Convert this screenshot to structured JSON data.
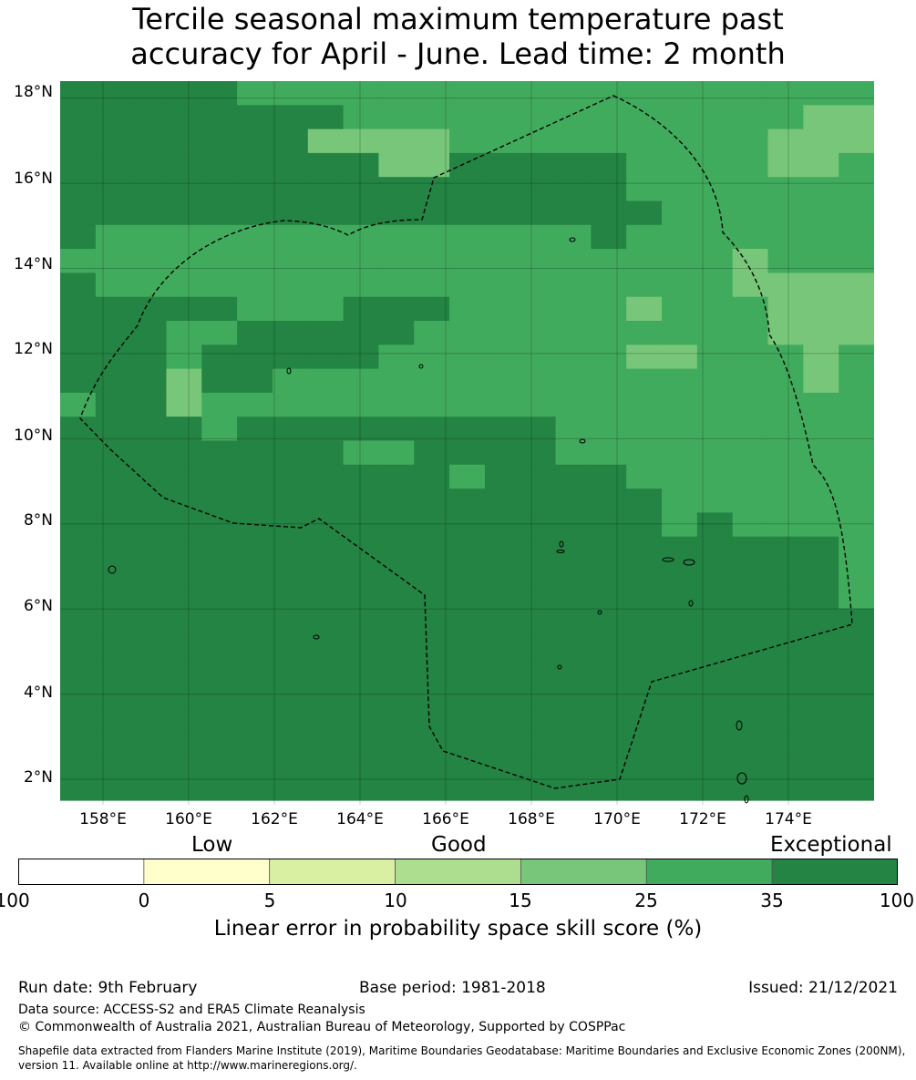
{
  "title": {
    "line1": "Tercile seasonal maximum temperature past",
    "line2": "accuracy for April - June. Lead time: 2 month"
  },
  "map": {
    "lat_ticks": [
      "18°N",
      "16°N",
      "14°N",
      "12°N",
      "10°N",
      "8°N",
      "6°N",
      "4°N",
      "2°N"
    ],
    "lon_ticks": [
      "158°E",
      "160°E",
      "162°E",
      "164°E",
      "166°E",
      "168°E",
      "170°E",
      "172°E",
      "174°E"
    ],
    "lat_range": [
      1.4,
      18.4
    ],
    "lon_range": [
      157.0,
      176.0
    ],
    "boundary_style": "dashed",
    "grid_columns": [
      "A",
      "B",
      "C",
      "D",
      "E",
      "F",
      "G",
      "H",
      "I",
      "J",
      "K",
      "L",
      "M",
      "N",
      "O",
      "P",
      "Q",
      "R",
      "S",
      "T",
      "U",
      "V",
      "W"
    ],
    "grid_rows": [
      "66666555555555555555555",
      "66666666555555555555544",
      "66666664444555555555444",
      "66666666644666665555445",
      "66666666666666665555555",
      "66666666666666666555555",
      "65555555555555565555555",
      "55555555555555555554555",
      "65555555555555555554444",
      "66666555666555554555444",
      "66655666665555555555444",
      "66656666655555554455545",
      "66646655555555555555545",
      "56645555555555555555555",
      "66665666666666555555555",
      "66666666556666555555555",
      "66666666666566665555555",
      "66666666666666666555555",
      "66666666666666666565555",
      "66666666666666666666665",
      "66666666666666666666665",
      "66666666666666666666665",
      "66666666666666666666666",
      "66666666666666666666666",
      "66666666666666666666666",
      "66666666666666666666666",
      "66666666666666666666666",
      "66666666666666666666666",
      "66666666666666666666666",
      "66666666666666666666666"
    ]
  },
  "colorbar": {
    "categories": [
      "Low",
      "Good",
      "Exceptional"
    ],
    "ticks": [
      "-100",
      "0",
      "5",
      "10",
      "15",
      "25",
      "35",
      "100"
    ],
    "colors": [
      "#ffffff",
      "#ffffcc",
      "#d9f0a3",
      "#addd8e",
      "#78c679",
      "#41ab5d",
      "#238443"
    ],
    "label": "Linear error in probability space skill score (%)"
  },
  "footer": {
    "run_date": "Run date: 9th February",
    "base_period": "Base period: 1981-2018",
    "issued": "Issued: 21/12/2021",
    "data_source": "Data source: ACCESS-S2 and ERA5 Climate Reanalysis",
    "copyright": "© Commonwealth of Australia 2021, Australian Bureau of Meteorology, Supported by COSPPac",
    "shapefile": "Shapefile data extracted from Flanders Marine Institute (2019), Maritime Boundaries Geodatabase: Maritime Boundaries and Exclusive Economic Zones (200NM), version 11. Available online at http://www.marineregions.org/."
  }
}
